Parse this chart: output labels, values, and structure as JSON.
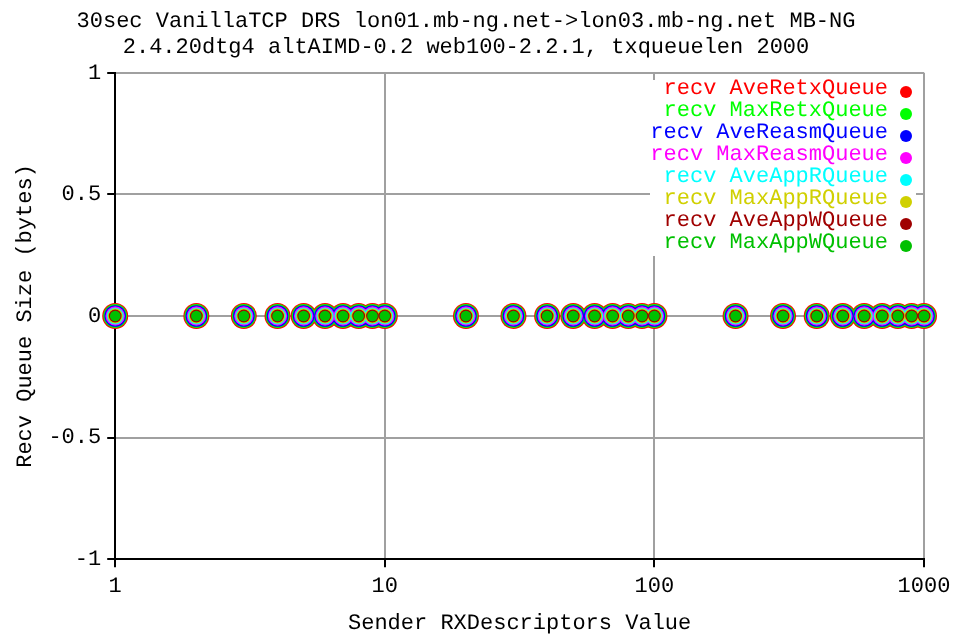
{
  "chart_data": {
    "type": "scatter",
    "title": "30sec VanillaTCP DRS lon01.mb-ng.net->lon03.mb-ng.net MB-NG",
    "subtitle": "2.4.20dtg4 altAIMD-0.2 web100-2.2.1, txqueuelen 2000",
    "xlabel": "Sender RXDescriptors Value",
    "ylabel": "Recv Queue Size (bytes)",
    "x": [
      1,
      2,
      3,
      4,
      5,
      6,
      7,
      8,
      9,
      10,
      20,
      30,
      40,
      50,
      60,
      70,
      80,
      90,
      100,
      200,
      300,
      400,
      500,
      600,
      700,
      800,
      900,
      1000
    ],
    "series": [
      {
        "name": "recv AveRetxQueue",
        "color": "#ff0000",
        "values": [
          0,
          0,
          0,
          0,
          0,
          0,
          0,
          0,
          0,
          0,
          0,
          0,
          0,
          0,
          0,
          0,
          0,
          0,
          0,
          0,
          0,
          0,
          0,
          0,
          0,
          0,
          0,
          0
        ]
      },
      {
        "name": "recv MaxRetxQueue",
        "color": "#00ff00",
        "values": [
          0,
          0,
          0,
          0,
          0,
          0,
          0,
          0,
          0,
          0,
          0,
          0,
          0,
          0,
          0,
          0,
          0,
          0,
          0,
          0,
          0,
          0,
          0,
          0,
          0,
          0,
          0,
          0
        ]
      },
      {
        "name": "recv AveReasmQueue",
        "color": "#0000ff",
        "values": [
          0,
          0,
          0,
          0,
          0,
          0,
          0,
          0,
          0,
          0,
          0,
          0,
          0,
          0,
          0,
          0,
          0,
          0,
          0,
          0,
          0,
          0,
          0,
          0,
          0,
          0,
          0,
          0
        ]
      },
      {
        "name": "recv MaxReasmQueue",
        "color": "#ff00ff",
        "values": [
          0,
          0,
          0,
          0,
          0,
          0,
          0,
          0,
          0,
          0,
          0,
          0,
          0,
          0,
          0,
          0,
          0,
          0,
          0,
          0,
          0,
          0,
          0,
          0,
          0,
          0,
          0,
          0
        ]
      },
      {
        "name": "recv AveAppRQueue",
        "color": "#00ffff",
        "values": [
          0,
          0,
          0,
          0,
          0,
          0,
          0,
          0,
          0,
          0,
          0,
          0,
          0,
          0,
          0,
          0,
          0,
          0,
          0,
          0,
          0,
          0,
          0,
          0,
          0,
          0,
          0,
          0
        ]
      },
      {
        "name": "recv MaxAppRQueue",
        "color": "#d0d000",
        "values": [
          0,
          0,
          0,
          0,
          0,
          0,
          0,
          0,
          0,
          0,
          0,
          0,
          0,
          0,
          0,
          0,
          0,
          0,
          0,
          0,
          0,
          0,
          0,
          0,
          0,
          0,
          0,
          0
        ]
      },
      {
        "name": "recv AveAppWQueue",
        "color": "#a00000",
        "values": [
          0,
          0,
          0,
          0,
          0,
          0,
          0,
          0,
          0,
          0,
          0,
          0,
          0,
          0,
          0,
          0,
          0,
          0,
          0,
          0,
          0,
          0,
          0,
          0,
          0,
          0,
          0,
          0
        ]
      },
      {
        "name": "recv MaxAppWQueue",
        "color": "#00c000",
        "values": [
          0,
          0,
          0,
          0,
          0,
          0,
          0,
          0,
          0,
          0,
          0,
          0,
          0,
          0,
          0,
          0,
          0,
          0,
          0,
          0,
          0,
          0,
          0,
          0,
          0,
          0,
          0,
          0
        ]
      }
    ],
    "xlim": [
      1,
      1000
    ],
    "xticks": [
      1,
      10,
      100,
      1000
    ],
    "ylim": [
      -1,
      1
    ],
    "yticks": [
      -1,
      -0.5,
      0,
      0.5,
      1
    ],
    "log": "x",
    "grid": true,
    "legend": "top right",
    "marker": "circle"
  }
}
